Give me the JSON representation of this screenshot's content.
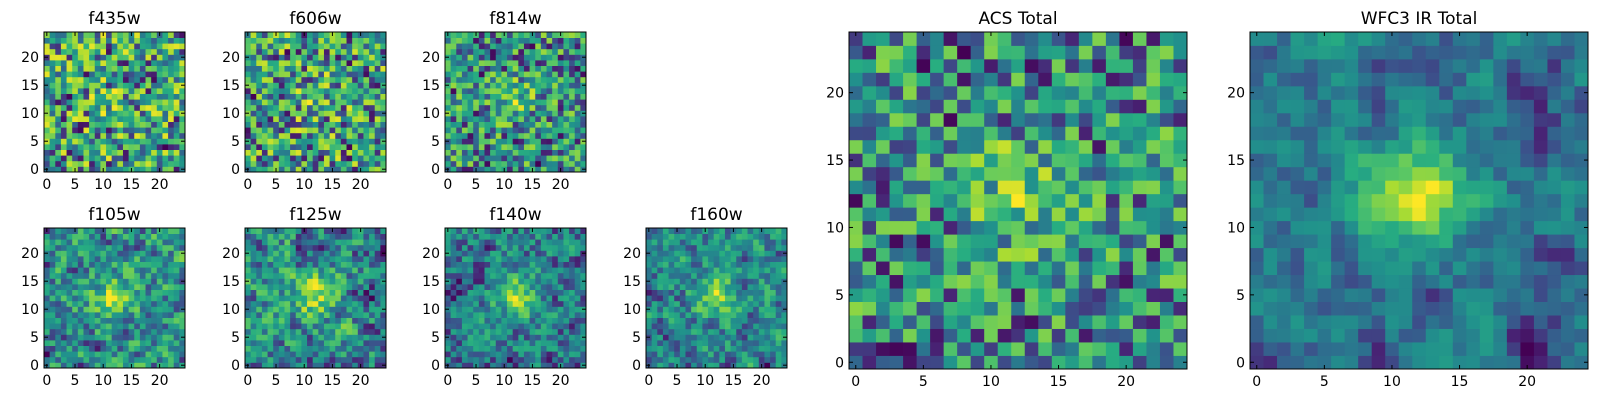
{
  "colormap": "viridis",
  "chart_data": [
    {
      "type": "heatmap",
      "title": "f435w",
      "grid_size": 25,
      "x_ticks": [
        "0",
        "5",
        "10",
        "15",
        "20"
      ],
      "y_ticks": [
        "0",
        "5",
        "10",
        "15",
        "20"
      ],
      "xlim": [
        -0.5,
        24.5
      ],
      "ylim": [
        -0.5,
        24.5
      ],
      "seed": 11,
      "smooth": 0,
      "noise": 1.0,
      "peak": 0.1
    },
    {
      "type": "heatmap",
      "title": "f606w",
      "grid_size": 25,
      "x_ticks": [
        "0",
        "5",
        "10",
        "15",
        "20"
      ],
      "y_ticks": [
        "0",
        "5",
        "10",
        "15",
        "20"
      ],
      "xlim": [
        -0.5,
        24.5
      ],
      "ylim": [
        -0.5,
        24.5
      ],
      "seed": 23,
      "smooth": 0,
      "noise": 1.0,
      "peak": 0.15
    },
    {
      "type": "heatmap",
      "title": "f814w",
      "grid_size": 25,
      "x_ticks": [
        "0",
        "5",
        "10",
        "15",
        "20"
      ],
      "y_ticks": [
        "0",
        "5",
        "10",
        "15",
        "20"
      ],
      "xlim": [
        -0.5,
        24.5
      ],
      "ylim": [
        -0.5,
        24.5
      ],
      "seed": 37,
      "smooth": 0,
      "noise": 1.0,
      "peak": 0.3
    },
    {
      "type": "heatmap",
      "title": "f105w",
      "grid_size": 25,
      "x_ticks": [
        "0",
        "5",
        "10",
        "15",
        "20"
      ],
      "y_ticks": [
        "0",
        "5",
        "10",
        "15",
        "20"
      ],
      "xlim": [
        -0.5,
        24.5
      ],
      "ylim": [
        -0.5,
        24.5
      ],
      "seed": 41,
      "smooth": 1,
      "noise": 1.0,
      "peak": 0.45
    },
    {
      "type": "heatmap",
      "title": "f125w",
      "grid_size": 25,
      "x_ticks": [
        "0",
        "5",
        "10",
        "15",
        "20"
      ],
      "y_ticks": [
        "0",
        "5",
        "10",
        "15",
        "20"
      ],
      "xlim": [
        -0.5,
        24.5
      ],
      "ylim": [
        -0.5,
        24.5
      ],
      "seed": 53,
      "smooth": 1,
      "noise": 1.0,
      "peak": 0.45
    },
    {
      "type": "heatmap",
      "title": "f140w",
      "grid_size": 25,
      "x_ticks": [
        "0",
        "5",
        "10",
        "15",
        "20"
      ],
      "y_ticks": [
        "0",
        "5",
        "10",
        "15",
        "20"
      ],
      "xlim": [
        -0.5,
        24.5
      ],
      "ylim": [
        -0.5,
        24.5
      ],
      "seed": 67,
      "smooth": 1,
      "noise": 1.0,
      "peak": 0.55
    },
    {
      "type": "heatmap",
      "title": "f160w",
      "grid_size": 25,
      "x_ticks": [
        "0",
        "5",
        "10",
        "15",
        "20"
      ],
      "y_ticks": [
        "0",
        "5",
        "10",
        "15",
        "20"
      ],
      "xlim": [
        -0.5,
        24.5
      ],
      "ylim": [
        -0.5,
        24.5
      ],
      "seed": 79,
      "smooth": 1,
      "noise": 1.0,
      "peak": 0.5
    },
    {
      "type": "heatmap",
      "title": "ACS Total",
      "grid_size": 25,
      "x_ticks": [
        "0",
        "5",
        "10",
        "15",
        "20"
      ],
      "y_ticks": [
        "0",
        "5",
        "10",
        "15",
        "20"
      ],
      "xlim": [
        -0.5,
        24.5
      ],
      "ylim": [
        -0.5,
        24.5
      ],
      "seed": 97,
      "smooth": 0,
      "noise": 1.0,
      "peak": 0.4
    },
    {
      "type": "heatmap",
      "title": "WFC3 IR Total",
      "grid_size": 25,
      "x_ticks": [
        "0",
        "5",
        "10",
        "15",
        "20"
      ],
      "y_ticks": [
        "0",
        "5",
        "10",
        "15",
        "20"
      ],
      "xlim": [
        -0.5,
        24.5
      ],
      "ylim": [
        -0.5,
        24.5
      ],
      "seed": 131,
      "smooth": 2,
      "noise": 1.0,
      "peak": 0.9
    }
  ]
}
